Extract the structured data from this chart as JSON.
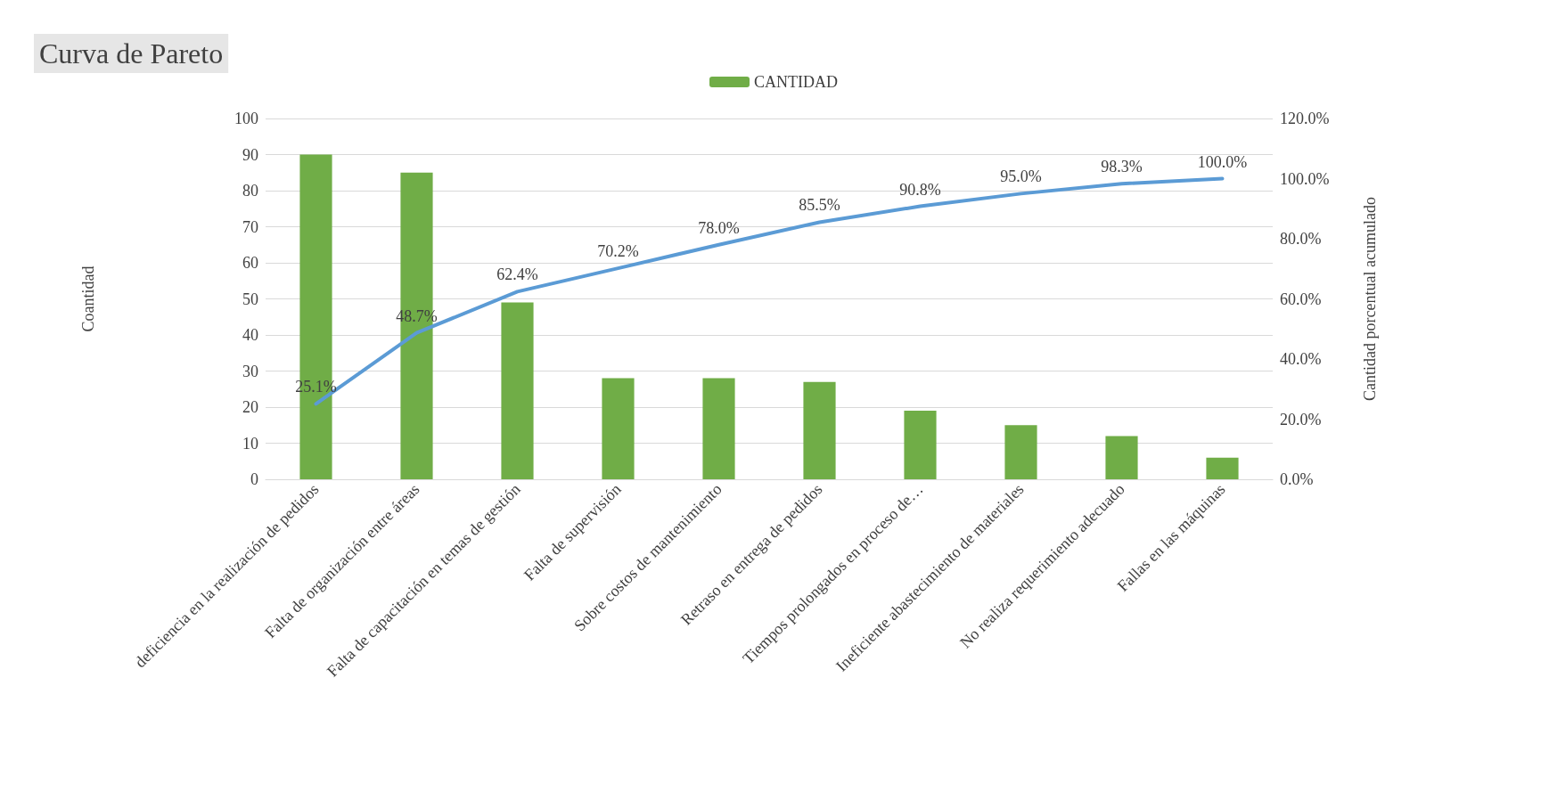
{
  "chart_data": {
    "type": "bar",
    "title": "Curva de Pareto",
    "ylabel": "Coantidad",
    "y2label": "Cantidad porcentual acumulado",
    "categories": [
      "deficiencia en la realización de pedidos",
      "Falta de organización entre áreas",
      "Falta de capacitación en temas de gestión",
      "Falta de supervisión",
      "Sobre costos de mantenimiento",
      "Retraso en entrega de pedidos",
      "Tiempos prolongados en proceso de…",
      "Ineficiente abastecimiento de materiales",
      "No realiza requerimiento adecuado",
      "Fallas en las máquinas"
    ],
    "series": [
      {
        "name": "CANTIDAD",
        "color": "#70ad47",
        "values": [
          90,
          85,
          49,
          28,
          28,
          27,
          19,
          15,
          12,
          6
        ]
      },
      {
        "type": "line",
        "axis": "y2",
        "color": "#5b9bd5",
        "values": [
          25.1,
          48.7,
          62.4,
          70.2,
          78.0,
          85.5,
          90.8,
          95.0,
          98.3,
          100.0
        ],
        "value_labels": [
          "25.1%",
          "48.7%",
          "62.4%",
          "70.2%",
          "78.0%",
          "85.5%",
          "90.8%",
          "95.0%",
          "98.3%",
          "100.0%"
        ],
        "marker": "none",
        "line_style": "solid"
      }
    ],
    "ylim": [
      0,
      100
    ],
    "yticks": [
      0,
      10,
      20,
      30,
      40,
      50,
      60,
      70,
      80,
      90,
      100
    ],
    "y2lim": [
      0,
      120
    ],
    "y2ticks": [
      {
        "value": 0,
        "label": "0.0%"
      },
      {
        "value": 20,
        "label": "20.0%"
      },
      {
        "value": 40,
        "label": "40.0%"
      },
      {
        "value": 60,
        "label": "60.0%"
      },
      {
        "value": 80,
        "label": "80.0%"
      },
      {
        "value": 100,
        "label": "100.0%"
      },
      {
        "value": 120,
        "label": "120.0%"
      }
    ],
    "grid": "y",
    "legend": "top"
  }
}
